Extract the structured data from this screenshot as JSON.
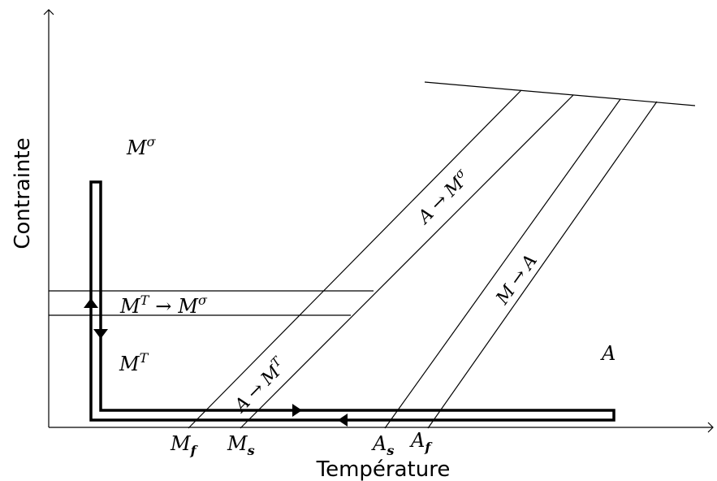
{
  "axes": {
    "x_title": "Température",
    "y_title": "Contrainte"
  },
  "regions": {
    "m_sigma": {
      "base": "M",
      "sup": "σ"
    },
    "m_t": {
      "base": "M",
      "sup": "T"
    },
    "austenite": "A"
  },
  "transformations": {
    "mt_to_msigma": {
      "from_base": "M",
      "from_sup": "T",
      "arrow": "→",
      "to_base": "M",
      "to_sup": "σ"
    },
    "a_to_msigma": {
      "from": "A",
      "arrow": "→",
      "to_base": "M",
      "to_sup": "σ"
    },
    "a_to_mt": {
      "from": "A",
      "arrow": "→",
      "to_base": "M",
      "to_sup": "T"
    },
    "m_to_a": {
      "from": "M",
      "arrow": "→",
      "to": "A"
    }
  },
  "temperatures": [
    {
      "base": "M",
      "sub": "f"
    },
    {
      "base": "M",
      "sub": "s"
    },
    {
      "base": "A",
      "sub": "s"
    },
    {
      "base": "A",
      "sub": "f"
    }
  ]
}
